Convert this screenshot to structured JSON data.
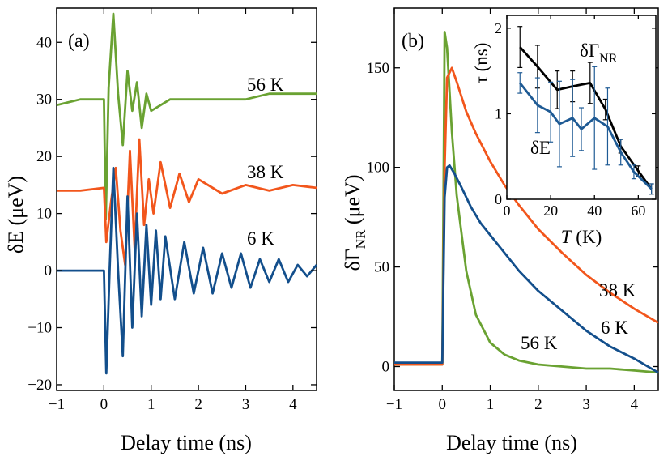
{
  "chart_data": [
    {
      "panel": "(a)",
      "type": "line",
      "title": "",
      "xlabel": "Delay time (ns)",
      "ylabel": "δE (μeV)",
      "xlim": [
        -1,
        4.5
      ],
      "ylim": [
        -21,
        46
      ],
      "xticks": [
        -1,
        0,
        1,
        2,
        3,
        4
      ],
      "yticks": [
        -20,
        -10,
        0,
        10,
        20,
        30,
        40
      ],
      "series": [
        {
          "name": "56 K",
          "label": "56 K",
          "color": "#6aa232",
          "baseline": 30,
          "x": [
            -1.0,
            -0.5,
            0.0,
            0.04,
            0.1,
            0.2,
            0.3,
            0.4,
            0.5,
            0.6,
            0.7,
            0.8,
            0.9,
            1.0,
            1.2,
            1.4,
            1.6,
            1.8,
            2.0,
            2.5,
            3.0,
            3.5,
            4.0,
            4.5
          ],
          "y": [
            29,
            30,
            30,
            9,
            32,
            45,
            31,
            22,
            35,
            28,
            33,
            25,
            31,
            28,
            29,
            30,
            30,
            30,
            30,
            30,
            30,
            31,
            31,
            31
          ]
        },
        {
          "name": "38 K",
          "label": "38 K",
          "color": "#f2561c",
          "baseline": 14.5,
          "x": [
            -1.0,
            -0.5,
            0.0,
            0.05,
            0.15,
            0.25,
            0.35,
            0.45,
            0.55,
            0.65,
            0.75,
            0.85,
            0.95,
            1.05,
            1.2,
            1.4,
            1.6,
            1.8,
            2.0,
            2.5,
            3.0,
            3.5,
            4.0,
            4.5
          ],
          "y": [
            14,
            14,
            14.5,
            5,
            12,
            18,
            7,
            1,
            21,
            4,
            23,
            8,
            16,
            10,
            19,
            11,
            17,
            12,
            16,
            13.5,
            15,
            14,
            15,
            14.5
          ]
        },
        {
          "name": "6 K",
          "label": "6 K",
          "color": "#134f8c",
          "baseline": 0,
          "x": [
            -1.0,
            -0.5,
            0.0,
            0.05,
            0.12,
            0.2,
            0.3,
            0.4,
            0.5,
            0.6,
            0.7,
            0.8,
            0.9,
            1.0,
            1.1,
            1.2,
            1.3,
            1.5,
            1.7,
            1.9,
            2.1,
            2.3,
            2.5,
            2.7,
            2.9,
            3.1,
            3.3,
            3.5,
            3.7,
            3.9,
            4.1,
            4.3,
            4.5
          ],
          "y": [
            0,
            0,
            0,
            -18,
            0,
            18,
            0,
            -15,
            13,
            -10,
            10,
            -8,
            8,
            -6,
            7,
            -5,
            6,
            -5,
            5,
            -4,
            4,
            -4,
            3,
            -3,
            3,
            -3,
            2,
            -2,
            2,
            -2,
            1,
            -1,
            1
          ]
        }
      ],
      "annotations": []
    },
    {
      "panel": "(b)",
      "type": "line",
      "title": "",
      "xlabel": "Delay time (ns)",
      "ylabel": "δΓNR (μeV)",
      "ylabel_main": "δΓ",
      "ylabel_sub": "NR",
      "ylabel_unit": " (μeV)",
      "xlim": [
        -1,
        4.5
      ],
      "ylim": [
        -12,
        180
      ],
      "xticks": [
        -1,
        0,
        1,
        2,
        3,
        4
      ],
      "yticks": [
        0,
        50,
        100,
        150
      ],
      "series": [
        {
          "name": "56 K",
          "label": "56 K",
          "color": "#6aa232",
          "x": [
            -1.0,
            -0.5,
            0.0,
            0.05,
            0.1,
            0.2,
            0.3,
            0.5,
            0.7,
            1.0,
            1.3,
            1.6,
            2.0,
            2.5,
            3.0,
            3.5,
            4.0,
            4.5
          ],
          "y": [
            1,
            1,
            1,
            168,
            160,
            118,
            86,
            48,
            26,
            12,
            6,
            3,
            1,
            0,
            -1,
            -1,
            -2,
            -3
          ]
        },
        {
          "name": "38 K",
          "label": "38 K",
          "color": "#f2561c",
          "x": [
            -1.0,
            -0.5,
            0.0,
            0.05,
            0.1,
            0.2,
            0.3,
            0.5,
            0.7,
            1.0,
            1.3,
            1.6,
            2.0,
            2.5,
            3.0,
            3.5,
            4.0,
            4.5
          ],
          "y": [
            1,
            1,
            1,
            100,
            145,
            150,
            143,
            128,
            117,
            103,
            91,
            81,
            69,
            57,
            46,
            37,
            29,
            22
          ]
        },
        {
          "name": "6 K",
          "label": "6 K",
          "color": "#134f8c",
          "x": [
            -1.0,
            -0.5,
            0.0,
            0.05,
            0.1,
            0.15,
            0.25,
            0.4,
            0.6,
            0.8,
            1.0,
            1.3,
            1.6,
            2.0,
            2.5,
            3.0,
            3.5,
            4.0,
            4.5
          ],
          "y": [
            2,
            2,
            2,
            85,
            100,
            101,
            97,
            90,
            80,
            72,
            66,
            57,
            48,
            38,
            28,
            18,
            10,
            4,
            -3
          ]
        }
      ],
      "inset": {
        "type": "line",
        "xlabel_italic": "T",
        "xlabel_rest": " (K)",
        "ylabel_greek": "τ",
        "ylabel_rest": " (ns)",
        "xlim": [
          0,
          68
        ],
        "ylim": [
          0,
          2.15
        ],
        "xticks": [
          0,
          20,
          40,
          60
        ],
        "yticks": [
          0,
          1,
          2
        ],
        "series": [
          {
            "name": "δΓNR",
            "label_main": "δΓ",
            "label_sub": "NR",
            "color": "#000000",
            "x": [
              6,
              14,
              23,
              30,
              38,
              45,
              52,
              60,
              66
            ],
            "y": [
              1.78,
              1.55,
              1.28,
              1.32,
              1.36,
              1.05,
              0.62,
              0.33,
              0.12
            ],
            "err": [
              0.24,
              0.25,
              0.22,
              0.18,
              0.24,
              0.12,
              0.08,
              0.06,
              0.06
            ]
          },
          {
            "name": "δE",
            "label": "δE",
            "color": "#1e5a94",
            "x": [
              6,
              14,
              20,
              24,
              30,
              34,
              40,
              46,
              52,
              58,
              66
            ],
            "y": [
              1.36,
              1.1,
              1.02,
              0.88,
              0.95,
              0.82,
              0.95,
              0.85,
              0.55,
              0.32,
              0.12
            ],
            "err": [
              0.12,
              0.32,
              0.35,
              0.5,
              0.45,
              0.25,
              0.6,
              0.45,
              0.15,
              0.08,
              0.06
            ]
          }
        ]
      }
    }
  ]
}
